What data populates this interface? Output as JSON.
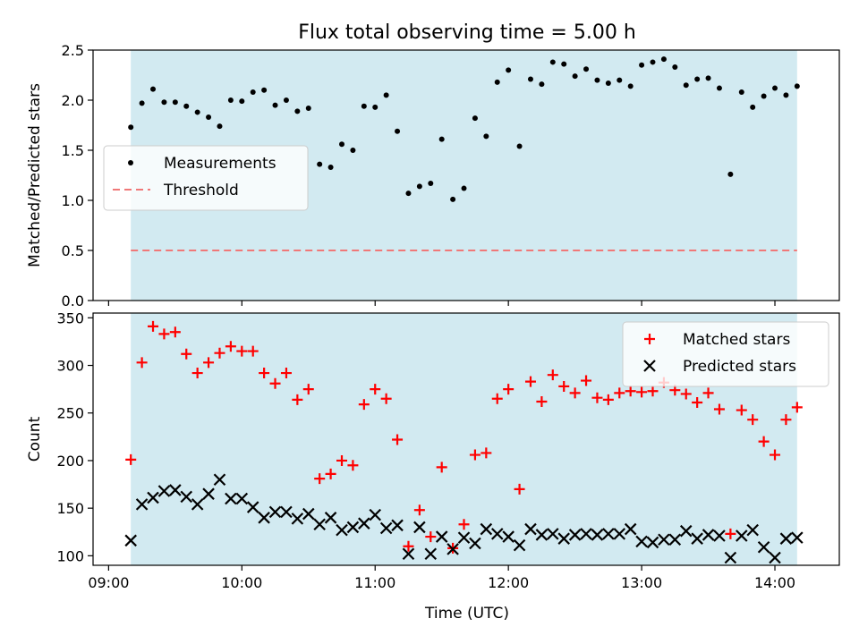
{
  "chart_data": {
    "title": "Flux total observing time = 5.00 h",
    "colors": {
      "observing_band": "#add8e6",
      "measurement": "#000000",
      "threshold": "#f07878",
      "matched": "#ff0000",
      "predicted": "#000000"
    },
    "x": {
      "label": "Time (UTC)",
      "ticks": [
        "09:00",
        "10:00",
        "11:00",
        "12:00",
        "13:00",
        "14:00"
      ],
      "range": [
        "08:53",
        "14:29"
      ],
      "observing_window": [
        "09:10",
        "14:10"
      ]
    },
    "panels": [
      {
        "type": "scatter",
        "ylabel": "Matched/Predicted stars",
        "ylim": [
          0.0,
          2.5
        ],
        "yticks": [
          "0.0",
          "0.5",
          "1.0",
          "1.5",
          "2.0",
          "2.5"
        ],
        "legend_position": "center-left",
        "threshold": {
          "name": "Threshold",
          "value": 0.5,
          "style": "dashed"
        },
        "series": [
          {
            "name": "Measurements",
            "marker": "dot",
            "times": [
              "09:10",
              "09:15",
              "09:20",
              "09:25",
              "09:30",
              "09:35",
              "09:40",
              "09:45",
              "09:50",
              "09:55",
              "10:00",
              "10:05",
              "10:10",
              "10:15",
              "10:20",
              "10:25",
              "10:30",
              "10:35",
              "10:40",
              "10:45",
              "10:50",
              "10:55",
              "11:00",
              "11:05",
              "11:10",
              "11:15",
              "11:20",
              "11:25",
              "11:30",
              "11:35",
              "11:40",
              "11:45",
              "11:50",
              "11:55",
              "12:00",
              "12:05",
              "12:10",
              "12:15",
              "12:20",
              "12:25",
              "12:30",
              "12:35",
              "12:40",
              "12:45",
              "12:50",
              "12:55",
              "13:00",
              "13:05",
              "13:10",
              "13:15",
              "13:20",
              "13:25",
              "13:30",
              "13:35",
              "13:40",
              "13:45",
              "13:50",
              "13:55",
              "14:00",
              "14:05",
              "14:10"
            ],
            "values": [
              1.73,
              1.97,
              2.11,
              1.98,
              1.98,
              1.94,
              1.88,
              1.83,
              1.74,
              2.0,
              1.99,
              2.08,
              2.1,
              1.95,
              2.0,
              1.89,
              1.92,
              1.36,
              1.33,
              1.56,
              1.5,
              1.94,
              1.93,
              2.05,
              1.69,
              1.07,
              1.14,
              1.17,
              1.61,
              1.01,
              1.12,
              1.82,
              1.64,
              2.18,
              2.3,
              1.54,
              2.21,
              2.16,
              2.38,
              2.36,
              2.24,
              2.31,
              2.2,
              2.17,
              2.2,
              2.14,
              2.35,
              2.38,
              2.41,
              2.33,
              2.15,
              2.21,
              2.22,
              2.12,
              1.26,
              2.08,
              1.93,
              2.04,
              2.12,
              2.05,
              2.14
            ]
          }
        ]
      },
      {
        "type": "scatter",
        "ylabel": "Count",
        "ylim": [
          90,
          355
        ],
        "yticks": [
          "100",
          "150",
          "200",
          "250",
          "300",
          "350"
        ],
        "legend_position": "top-right",
        "series": [
          {
            "name": "Matched stars",
            "marker": "plus",
            "times": [
              "09:10",
              "09:15",
              "09:20",
              "09:25",
              "09:30",
              "09:35",
              "09:40",
              "09:45",
              "09:50",
              "09:55",
              "10:00",
              "10:05",
              "10:10",
              "10:15",
              "10:20",
              "10:25",
              "10:30",
              "10:35",
              "10:40",
              "10:45",
              "10:50",
              "10:55",
              "11:00",
              "11:05",
              "11:10",
              "11:15",
              "11:20",
              "11:25",
              "11:30",
              "11:35",
              "11:40",
              "11:45",
              "11:50",
              "11:55",
              "12:00",
              "12:05",
              "12:10",
              "12:15",
              "12:20",
              "12:25",
              "12:30",
              "12:35",
              "12:40",
              "12:45",
              "12:50",
              "12:55",
              "13:00",
              "13:05",
              "13:10",
              "13:15",
              "13:20",
              "13:25",
              "13:30",
              "13:35",
              "13:40",
              "13:45",
              "13:50",
              "13:55",
              "14:00",
              "14:05",
              "14:10"
            ],
            "values": [
              201,
              303,
              341,
              333,
              335,
              312,
              292,
              303,
              313,
              320,
              315,
              315,
              292,
              281,
              292,
              264,
              275,
              181,
              186,
              200,
              195,
              259,
              275,
              265,
              222,
              110,
              148,
              120,
              193,
              108,
              133,
              206,
              208,
              265,
              275,
              170,
              283,
              262,
              290,
              278,
              271,
              284,
              266,
              264,
              271,
              273,
              272,
              273,
              282,
              274,
              270,
              261,
              271,
              254,
              123,
              253,
              243,
              220,
              206,
              243,
              256
            ]
          },
          {
            "name": "Predicted stars",
            "marker": "x",
            "times": [
              "09:10",
              "09:15",
              "09:20",
              "09:25",
              "09:30",
              "09:35",
              "09:40",
              "09:45",
              "09:50",
              "09:55",
              "10:00",
              "10:05",
              "10:10",
              "10:15",
              "10:20",
              "10:25",
              "10:30",
              "10:35",
              "10:40",
              "10:45",
              "10:50",
              "10:55",
              "11:00",
              "11:05",
              "11:10",
              "11:15",
              "11:20",
              "11:25",
              "11:30",
              "11:35",
              "11:40",
              "11:45",
              "11:50",
              "11:55",
              "12:00",
              "12:05",
              "12:10",
              "12:15",
              "12:20",
              "12:25",
              "12:30",
              "12:35",
              "12:40",
              "12:45",
              "12:50",
              "12:55",
              "13:00",
              "13:05",
              "13:10",
              "13:15",
              "13:20",
              "13:25",
              "13:30",
              "13:35",
              "13:40",
              "13:45",
              "13:50",
              "13:55",
              "14:00",
              "14:05",
              "14:10"
            ],
            "values": [
              116,
              154,
              161,
              168,
              169,
              162,
              154,
              165,
              180,
              160,
              160,
              151,
              140,
              146,
              146,
              139,
              144,
              133,
              140,
              127,
              130,
              134,
              143,
              129,
              132,
              102,
              130,
              102,
              120,
              107,
              119,
              113,
              128,
              123,
              120,
              111,
              128,
              122,
              123,
              118,
              122,
              123,
              122,
              123,
              123,
              128,
              115,
              114,
              117,
              117,
              126,
              118,
              122,
              121,
              98,
              121,
              127,
              109,
              98,
              118,
              119
            ]
          }
        ]
      }
    ]
  }
}
